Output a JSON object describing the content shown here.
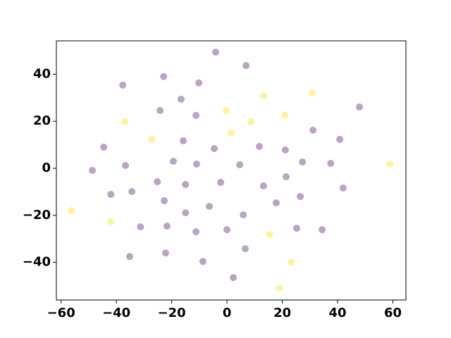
{
  "chart_data": {
    "type": "scatter",
    "xlim": [
      -61.7,
      64.7
    ],
    "ylim": [
      -56.0,
      54.2
    ],
    "xticks": [
      {
        "value": -60,
        "label": "−60"
      },
      {
        "value": -40,
        "label": "−40"
      },
      {
        "value": -20,
        "label": "−20"
      },
      0,
      20,
      40,
      60
    ],
    "yticks": [
      {
        "value": -40,
        "label": "−40"
      },
      {
        "value": -20,
        "label": "−20"
      },
      0,
      20,
      40
    ],
    "series": [
      {
        "color": "#b9a5c0",
        "x": [
          -4.1,
          6.9,
          -22.9,
          -37.7,
          -10.2,
          -16.6,
          -24.2,
          47.9,
          -11.2,
          31.1,
          -44.6,
          -15.8,
          -4.6,
          11.7,
          21.1,
          40.8,
          -48.7,
          -36.7,
          -19.4,
          -11.0,
          4.6,
          27.3,
          37.5,
          21.4,
          -25.2,
          -15.0,
          -2.3,
          -42.0,
          -34.4,
          13.2,
          42.0,
          26.5,
          -22.7,
          17.8,
          -6.4,
          -15.0,
          5.9,
          -31.3,
          -21.7,
          -11.2,
          0,
          25.2,
          34.4,
          6.6,
          -22.2,
          -35.2,
          -8.7,
          2.3
        ],
        "values": [
          49.4,
          43.7,
          39.0,
          35.4,
          36.3,
          29.4,
          24.6,
          26.1,
          22.5,
          16.2,
          9.0,
          11.7,
          8.4,
          9.3,
          7.8,
          12.3,
          -0.9,
          1.2,
          3.0,
          1.8,
          1.5,
          2.7,
          2.1,
          -3.6,
          -5.7,
          -6.9,
          -6.0,
          -11.1,
          -9.9,
          -7.5,
          -8.4,
          -12.0,
          -13.8,
          -14.7,
          -16.2,
          -18.9,
          -19.8,
          -24.9,
          -24.6,
          -27.0,
          -26.1,
          -25.5,
          -26.1,
          -34.2,
          -36.0,
          -37.5,
          -39.6,
          -46.5
        ]
      },
      {
        "color": "#fdf3a6",
        "x": [
          -36.9,
          -0.3,
          13.2,
          30.8,
          20.9,
          1.5,
          8.7,
          -27.3,
          58.9,
          -56.3,
          -42.0,
          15.5,
          23.2,
          18.9
        ],
        "values": [
          19.8,
          24.6,
          30.9,
          32.1,
          22.5,
          15.0,
          19.8,
          12.3,
          1.8,
          -18.0,
          -22.8,
          -28.2,
          -39.9,
          -51.0
        ]
      }
    ]
  }
}
